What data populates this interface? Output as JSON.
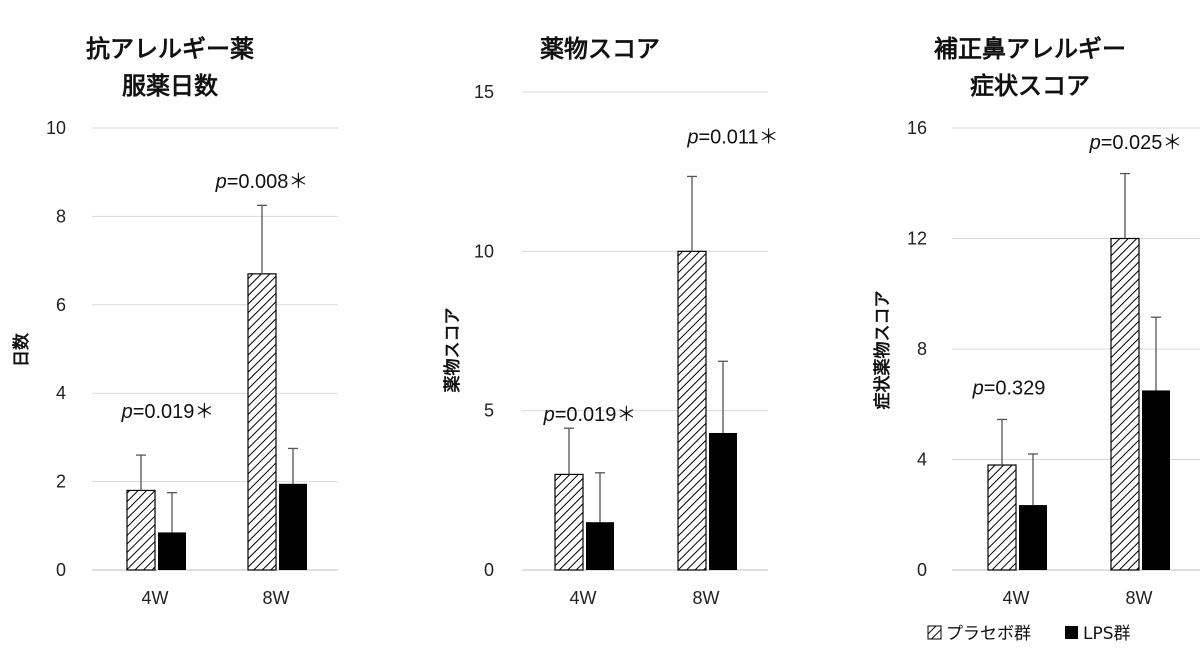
{
  "chart_data": [
    {
      "type": "bar",
      "title_lines": [
        "抗アレルギー薬",
        "服薬日数"
      ],
      "ylabel": "日数",
      "ylim": [
        0,
        10
      ],
      "yticks": [
        0,
        2,
        4,
        6,
        8,
        10
      ],
      "categories": [
        "4W",
        "8W"
      ],
      "series": [
        {
          "name": "プラセボ群",
          "values": [
            1.8,
            6.7
          ],
          "errors": [
            0.8,
            1.55
          ]
        },
        {
          "name": "LPS群",
          "values": [
            0.85,
            1.95
          ],
          "errors": [
            0.9,
            0.8
          ]
        }
      ],
      "annotations": [
        {
          "category": "4W",
          "text_p": "p",
          "text_rest": "=0.019＊",
          "value": 3.6
        },
        {
          "category": "8W",
          "text_p": "p",
          "text_rest": "=0.008＊",
          "value": 8.8
        }
      ],
      "grid": true
    },
    {
      "type": "bar",
      "title_lines": [
        "薬物スコア"
      ],
      "ylabel": "薬物スコア",
      "ylim": [
        0,
        15
      ],
      "yticks": [
        0,
        5,
        10,
        15
      ],
      "categories": [
        "4W",
        "8W"
      ],
      "series": [
        {
          "name": "プラセボ群",
          "values": [
            3.0,
            10.0
          ],
          "errors": [
            1.45,
            2.35
          ]
        },
        {
          "name": "LPS群",
          "values": [
            1.5,
            4.3
          ],
          "errors": [
            1.55,
            2.25
          ]
        }
      ],
      "annotations": [
        {
          "category": "4W",
          "text_p": "p",
          "text_rest": "=0.019＊",
          "value": 4.9
        },
        {
          "category": "8W",
          "text_p": "p",
          "text_rest": "=0.011＊",
          "value": 13.6
        }
      ],
      "grid": true
    },
    {
      "type": "bar",
      "title_lines": [
        "補正鼻アレルギー",
        "症状スコア"
      ],
      "ylabel": "症状薬物スコア",
      "ylim": [
        0,
        16
      ],
      "yticks": [
        0,
        4,
        8,
        12,
        16
      ],
      "categories": [
        "4W",
        "8W"
      ],
      "series": [
        {
          "name": "プラセボ群",
          "values": [
            3.8,
            12.0
          ],
          "errors": [
            1.65,
            2.35
          ]
        },
        {
          "name": "LPS群",
          "values": [
            2.35,
            6.5
          ],
          "errors": [
            1.85,
            2.65
          ]
        }
      ],
      "annotations": [
        {
          "category": "4W",
          "text_p": "p",
          "text_rest": "=0.329",
          "value": 6.6
        },
        {
          "category": "8W",
          "text_p": "p",
          "text_rest": "=0.025＊",
          "value": 15.5
        }
      ],
      "grid": true
    }
  ],
  "legend": {
    "placement": "bottom-right",
    "items": [
      {
        "label": "プラセボ群",
        "style": "hatched"
      },
      {
        "label": "LPS群",
        "style": "solid"
      }
    ]
  },
  "colors": {
    "solid_bar": "#000000",
    "hatch_bar_fill": "#ffffff",
    "hatch_line": "#000000",
    "gridline": "#d9d9d9",
    "text": "#111111"
  }
}
